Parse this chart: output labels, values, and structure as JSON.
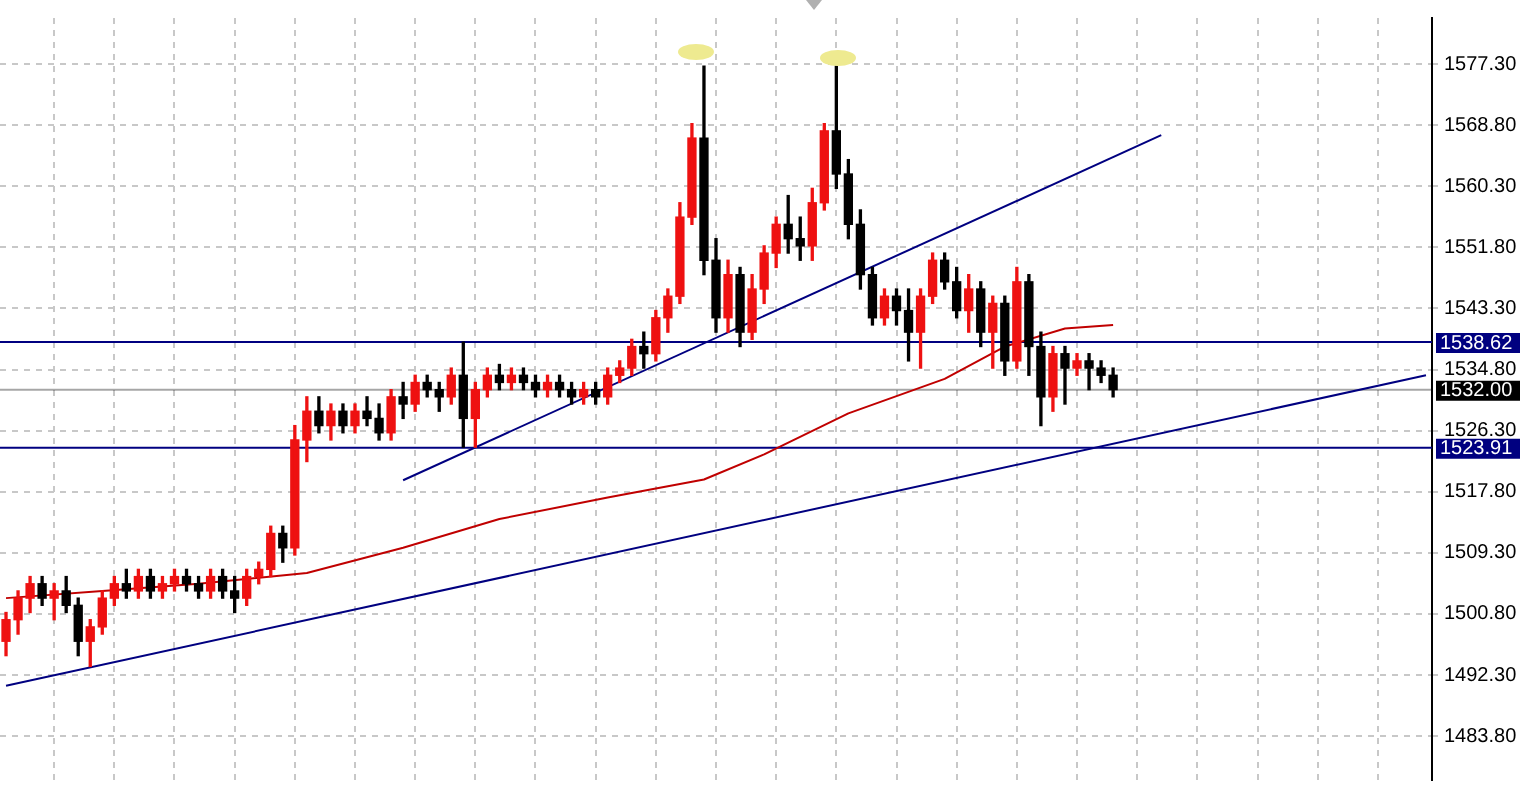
{
  "chart_data": {
    "type": "candlestick",
    "categories": [
      null,
      null,
      null,
      null,
      null,
      null,
      null,
      null,
      null,
      null,
      null,
      null,
      null,
      null,
      null,
      null,
      null,
      null,
      null,
      null,
      null,
      null,
      null,
      null,
      null,
      null,
      null,
      null,
      null,
      null,
      null,
      null,
      null,
      null,
      null,
      null,
      null,
      null,
      null,
      null,
      null,
      null,
      null,
      null,
      null,
      null,
      null,
      null,
      null,
      null,
      null,
      null,
      null,
      null,
      null,
      null,
      null,
      null,
      null,
      null,
      null,
      null,
      null,
      null,
      null,
      null,
      null,
      null,
      null,
      null,
      null,
      null,
      null,
      null,
      null,
      null,
      null,
      null,
      null,
      null,
      null,
      null,
      null,
      null,
      null,
      null,
      null,
      null,
      null,
      null,
      null,
      null,
      null,
      null,
      null,
      null,
      null,
      null,
      null,
      null,
      null,
      null,
      null,
      null,
      null,
      null,
      null,
      null,
      null,
      null,
      null,
      null,
      null,
      null,
      null,
      null,
      null,
      null,
      null
    ],
    "ohlc": [
      [
        1497,
        1501,
        1495,
        1500
      ],
      [
        1500,
        1504,
        1498,
        1503
      ],
      [
        1503,
        1506,
        1501,
        1505
      ],
      [
        1505,
        1506,
        1502,
        1503
      ],
      [
        1503,
        1505,
        1500,
        1504
      ],
      [
        1504,
        1506,
        1501,
        1502
      ],
      [
        1502,
        1503,
        1495,
        1497
      ],
      [
        1497,
        1500,
        1493.5,
        1499
      ],
      [
        1499,
        1504,
        1498,
        1503
      ],
      [
        1503,
        1506,
        1502,
        1505
      ],
      [
        1505,
        1507,
        1503,
        1504
      ],
      [
        1504,
        1507,
        1503,
        1506
      ],
      [
        1506,
        1507,
        1503,
        1504
      ],
      [
        1504,
        1506,
        1503,
        1505
      ],
      [
        1505,
        1507,
        1504,
        1506
      ],
      [
        1506,
        1507,
        1504,
        1505
      ],
      [
        1505,
        1506,
        1503,
        1504
      ],
      [
        1504,
        1507,
        1503,
        1506
      ],
      [
        1506,
        1507,
        1503,
        1504
      ],
      [
        1504,
        1506,
        1501,
        1503
      ],
      [
        1503,
        1507,
        1502,
        1506
      ],
      [
        1506,
        1508,
        1505,
        1507
      ],
      [
        1507,
        1513,
        1506,
        1512
      ],
      [
        1512,
        1513,
        1508,
        1510
      ],
      [
        1510,
        1527,
        1509,
        1525
      ],
      [
        1525,
        1531,
        1522,
        1529
      ],
      [
        1529,
        1531,
        1526,
        1527
      ],
      [
        1527,
        1530,
        1525,
        1529
      ],
      [
        1529,
        1530,
        1526,
        1527
      ],
      [
        1527,
        1530,
        1526,
        1529
      ],
      [
        1529,
        1531,
        1527,
        1528
      ],
      [
        1528,
        1530,
        1525,
        1526
      ],
      [
        1526,
        1532,
        1525,
        1531
      ],
      [
        1531,
        1533,
        1528,
        1530
      ],
      [
        1530,
        1534,
        1529,
        1533
      ],
      [
        1533,
        1534,
        1531,
        1532
      ],
      [
        1532,
        1533,
        1529,
        1531
      ],
      [
        1531,
        1535,
        1530,
        1534
      ],
      [
        1534,
        1538.6,
        1524,
        1528
      ],
      [
        1528,
        1533,
        1524,
        1532
      ],
      [
        1532,
        1535,
        1531,
        1534
      ],
      [
        1534,
        1535.5,
        1532,
        1533
      ],
      [
        1533,
        1535,
        1532,
        1534
      ],
      [
        1534,
        1535,
        1532,
        1533
      ],
      [
        1533,
        1534,
        1531,
        1532
      ],
      [
        1532,
        1534,
        1531,
        1533
      ],
      [
        1533,
        1534,
        1531,
        1532
      ],
      [
        1532,
        1533,
        1530,
        1531
      ],
      [
        1531,
        1533,
        1530,
        1532
      ],
      [
        1532,
        1533,
        1530,
        1531
      ],
      [
        1531,
        1535,
        1530,
        1534
      ],
      [
        1534,
        1536,
        1533,
        1535
      ],
      [
        1535,
        1539,
        1534,
        1538
      ],
      [
        1538,
        1540,
        1535,
        1537
      ],
      [
        1537,
        1543,
        1536,
        1542
      ],
      [
        1542,
        1546,
        1540,
        1545
      ],
      [
        1545,
        1558,
        1544,
        1556
      ],
      [
        1556,
        1569,
        1555,
        1567
      ],
      [
        1567,
        1577,
        1548,
        1550
      ],
      [
        1550,
        1553,
        1540,
        1542
      ],
      [
        1542,
        1550,
        1540,
        1548
      ],
      [
        1548,
        1549,
        1538,
        1540
      ],
      [
        1540,
        1548,
        1539,
        1546
      ],
      [
        1546,
        1552,
        1544,
        1551
      ],
      [
        1551,
        1556,
        1549,
        1555
      ],
      [
        1555,
        1559,
        1551,
        1553
      ],
      [
        1553,
        1556,
        1550,
        1552
      ],
      [
        1552,
        1560,
        1550,
        1558
      ],
      [
        1558,
        1569,
        1557,
        1568
      ],
      [
        1568,
        1577,
        1560,
        1562
      ],
      [
        1562,
        1564,
        1553,
        1555
      ],
      [
        1555,
        1557,
        1546,
        1548
      ],
      [
        1548,
        1549,
        1541,
        1542
      ],
      [
        1542,
        1546,
        1541,
        1545
      ],
      [
        1545,
        1546,
        1541,
        1543
      ],
      [
        1543,
        1546,
        1536,
        1540
      ],
      [
        1540,
        1546,
        1535,
        1545
      ],
      [
        1545,
        1551,
        1544,
        1550
      ],
      [
        1550,
        1551,
        1546,
        1547
      ],
      [
        1547,
        1549,
        1542,
        1543
      ],
      [
        1543,
        1548,
        1540,
        1546
      ],
      [
        1546,
        1547,
        1538,
        1540
      ],
      [
        1540,
        1545,
        1535,
        1544
      ],
      [
        1544,
        1545,
        1534,
        1536
      ],
      [
        1536,
        1549,
        1535,
        1547
      ],
      [
        1547,
        1548,
        1534,
        1538
      ],
      [
        1538,
        1540,
        1527,
        1531
      ],
      [
        1531,
        1538,
        1529,
        1537
      ],
      [
        1537,
        1538,
        1530,
        1535
      ],
      [
        1535,
        1537,
        1534,
        1536
      ],
      [
        1536,
        1537,
        1532,
        1535
      ],
      [
        1535,
        1536,
        1533,
        1534
      ],
      [
        1534,
        1535,
        1531,
        1532
      ],
      null,
      null,
      null,
      null,
      null,
      null,
      null,
      null,
      null,
      null,
      null,
      null,
      null,
      null,
      null,
      null,
      null,
      null,
      null,
      null,
      null,
      null,
      null,
      null,
      null,
      null
    ],
    "colors": [
      "#ee1111",
      "#ee1111",
      "#ee1111",
      "#000000",
      "#ee1111",
      "#000000",
      "#000000",
      "#ee1111",
      "#ee1111",
      "#ee1111",
      "#000000",
      "#ee1111",
      "#000000",
      "#ee1111",
      "#ee1111",
      "#000000",
      "#000000",
      "#ee1111",
      "#000000",
      "#000000",
      "#ee1111",
      "#ee1111",
      "#ee1111",
      "#000000",
      "#ee1111",
      "#ee1111",
      "#000000",
      "#ee1111",
      "#000000",
      "#ee1111",
      "#000000",
      "#000000",
      "#ee1111",
      "#000000",
      "#ee1111",
      "#000000",
      "#000000",
      "#ee1111",
      "#000000",
      "#ee1111",
      "#ee1111",
      "#000000",
      "#ee1111",
      "#000000",
      "#000000",
      "#ee1111",
      "#000000",
      "#000000",
      "#ee1111",
      "#000000",
      "#ee1111",
      "#ee1111",
      "#ee1111",
      "#000000",
      "#ee1111",
      "#ee1111",
      "#ee1111",
      "#ee1111",
      "#000000",
      "#000000",
      "#ee1111",
      "#000000",
      "#ee1111",
      "#ee1111",
      "#ee1111",
      "#000000",
      "#000000",
      "#ee1111",
      "#ee1111",
      "#000000",
      "#000000",
      "#000000",
      "#000000",
      "#ee1111",
      "#000000",
      "#000000",
      "#ee1111",
      "#ee1111",
      "#000000",
      "#000000",
      "#ee1111",
      "#000000",
      "#ee1111",
      "#000000",
      "#ee1111",
      "#000000",
      "#000000",
      "#ee1111",
      "#000000",
      "#ee1111",
      "#000000",
      "#000000",
      "#000000",
      null,
      null,
      null,
      null,
      null,
      null,
      null,
      null,
      null,
      null,
      null,
      null,
      null,
      null,
      null,
      null,
      null,
      null,
      null,
      null,
      null,
      null,
      null,
      null,
      null,
      null
    ],
    "series": [
      {
        "type": "line",
        "color": "#c00000",
        "values": [
          1503,
          null,
          null,
          null,
          null,
          null,
          null,
          null,
          1504,
          null,
          null,
          null,
          null,
          null,
          null,
          null,
          1505,
          null,
          null,
          null,
          null,
          null,
          null,
          null,
          null,
          1506.5,
          null,
          null,
          null,
          null,
          null,
          null,
          null,
          1510,
          null,
          null,
          null,
          null,
          null,
          null,
          null,
          1514,
          null,
          null,
          null,
          null,
          null,
          null,
          null,
          null,
          1517,
          null,
          null,
          null,
          null,
          null,
          null,
          null,
          1519.5,
          null,
          null,
          null,
          null,
          1523,
          null,
          null,
          null,
          null,
          null,
          null,
          1528.7,
          null,
          null,
          null,
          null,
          null,
          null,
          null,
          1533.5,
          null,
          null,
          null,
          null,
          1538,
          null,
          null,
          null,
          null,
          1540.5,
          null,
          null,
          null,
          1541,
          null,
          null,
          null,
          null,
          null,
          null,
          null,
          null,
          null,
          null,
          null,
          null,
          null,
          null,
          null,
          null,
          null,
          null,
          null,
          null,
          null,
          null,
          null,
          null,
          null,
          null
        ]
      },
      {
        "type": "line",
        "color": "#000080",
        "values": [
          1490.8,
          null,
          null,
          null,
          null,
          null,
          null,
          null,
          null,
          null,
          null,
          null,
          null,
          null,
          null,
          null,
          null,
          null,
          null,
          null,
          null,
          null,
          null,
          null,
          null,
          null,
          null,
          null,
          null,
          null,
          null,
          null,
          null,
          null,
          null,
          null,
          null,
          null,
          null,
          null,
          null,
          null,
          null,
          null,
          null,
          null,
          null,
          null,
          null,
          null,
          null,
          null,
          null,
          null,
          null,
          null,
          null,
          null,
          null,
          null,
          null,
          null,
          null,
          null,
          null,
          null,
          null,
          null,
          null,
          null,
          null,
          null,
          null,
          null,
          null,
          null,
          null,
          null,
          null,
          null,
          null,
          null,
          null,
          null,
          null,
          null,
          null,
          null,
          null,
          null,
          null,
          null,
          null,
          null,
          null,
          null,
          null,
          null,
          null,
          null,
          null,
          null,
          null,
          null,
          null,
          null,
          null,
          null,
          null,
          null,
          null,
          null,
          null,
          null,
          null,
          null,
          null,
          null,
          1534.0
        ]
      },
      {
        "type": "line",
        "color": "#000080",
        "values": [
          null,
          null,
          null,
          null,
          null,
          null,
          null,
          null,
          null,
          null,
          null,
          null,
          null,
          null,
          null,
          null,
          null,
          null,
          null,
          null,
          null,
          null,
          null,
          null,
          null,
          null,
          null,
          null,
          null,
          null,
          null,
          null,
          null,
          1519.4,
          null,
          null,
          null,
          null,
          null,
          null,
          null,
          null,
          null,
          null,
          null,
          null,
          null,
          null,
          null,
          null,
          null,
          null,
          null,
          null,
          null,
          null,
          null,
          null,
          null,
          null,
          null,
          null,
          null,
          null,
          null,
          null,
          null,
          null,
          null,
          null,
          null,
          null,
          null,
          null,
          null,
          null,
          null,
          null,
          null,
          null,
          null,
          null,
          null,
          null,
          null,
          null,
          null,
          null,
          null,
          null,
          null,
          null,
          null,
          null,
          null,
          null,
          1567.4,
          null,
          null,
          null,
          null,
          null,
          null,
          null,
          null,
          null,
          null,
          null,
          null,
          null,
          null,
          null,
          null,
          null,
          null,
          null,
          null,
          null,
          null
        ]
      }
    ],
    "ref_lines": [
      {
        "axis": "y",
        "value": 1538.62,
        "label": "1538.62",
        "color": "#000080"
      },
      {
        "axis": "y",
        "value": 1523.91,
        "label": "1523.91",
        "color": "#000080"
      },
      {
        "axis": "y",
        "value": 1532,
        "label": "1532.00",
        "color": "#000000"
      }
    ],
    "ylim": [
      1477.7,
      1583.7
    ],
    "yticks": [
      {
        "value": 1483.8,
        "label": "1483.80"
      },
      {
        "value": 1492.3,
        "label": "1492.30"
      },
      {
        "value": 1500.8,
        "label": "1500.80"
      },
      {
        "value": 1509.3,
        "label": "1509.30"
      },
      {
        "value": 1517.8,
        "label": "1517.80"
      },
      {
        "value": 1526.3,
        "label": "1526.30"
      },
      {
        "value": 1534.8,
        "label": "1534.80"
      },
      {
        "value": 1543.3,
        "label": "1543.30"
      },
      {
        "value": 1551.8,
        "label": "1551.80"
      },
      {
        "value": 1560.3,
        "label": "1560.30"
      },
      {
        "value": 1568.8,
        "label": "1568.80"
      },
      {
        "value": 1577.3,
        "label": "1577.30"
      }
    ],
    "grid": true,
    "legend": false,
    "tick_labels": "y"
  }
}
